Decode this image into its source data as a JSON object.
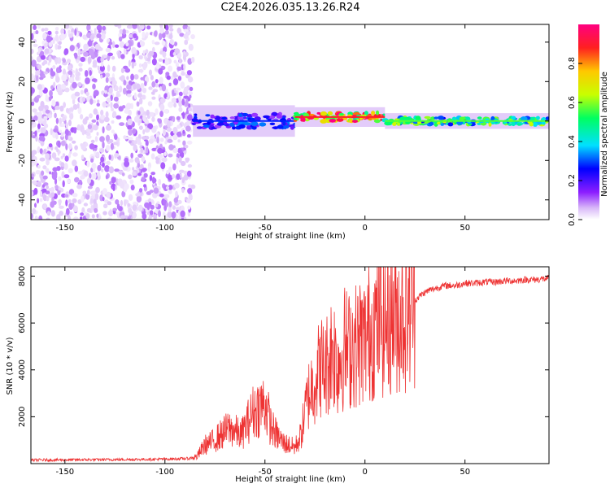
{
  "figure_title": "C2E4.2026.035.13.26.R24",
  "colors": {
    "snr_line": "#ee3333",
    "frame": "#000000",
    "background": "#ffffff"
  },
  "chart_data": [
    {
      "id": "spectrogram",
      "type": "heatmap",
      "title": "",
      "xlabel": "Height of straight line (km)",
      "ylabel": "Frequency (Hz)",
      "xlim": [
        -167,
        92
      ],
      "ylim": [
        -50,
        49
      ],
      "xticks": [
        -150,
        -100,
        -50,
        0,
        50
      ],
      "yticks": [
        -40,
        -20,
        0,
        20,
        40
      ],
      "colorbar": {
        "label": "Normalized spectral amplitude",
        "range": [
          0,
          1
        ],
        "ticks": [
          "0.0",
          "0.2",
          "0.4",
          "0.6",
          "0.8"
        ],
        "tick_values": [
          0.0,
          0.2,
          0.4,
          0.6,
          0.8
        ],
        "colormap": [
          "#ffffff",
          "#d8b8f8",
          "#8c1eff",
          "#0000ff",
          "#00e0ff",
          "#00ff60",
          "#c8ff00",
          "#ffc800",
          "#ff2020",
          "#ff0080"
        ]
      },
      "regions": [
        {
          "name": "noise",
          "x_range": [
            -167,
            -86
          ],
          "freq_range": [
            -50,
            49
          ],
          "amplitude": 0.1
        },
        {
          "name": "carrier-onset",
          "x_range": [
            -86,
            -35
          ],
          "center_freq": 0,
          "bandwidth": 8,
          "amplitude": 0.35
        },
        {
          "name": "carrier-peak",
          "x_range": [
            -35,
            10
          ],
          "center_freq": 2,
          "bandwidth": 5,
          "amplitude": 0.9
        },
        {
          "name": "carrier-tail",
          "x_range": [
            10,
            92
          ],
          "center_freq": 0,
          "bandwidth": 4,
          "amplitude": 0.6
        }
      ]
    },
    {
      "id": "snr",
      "type": "line",
      "title": "",
      "xlabel": "Height of straight line (km)",
      "ylabel": "SNR (10 * v/v)",
      "xlim": [
        -167,
        92
      ],
      "ylim": [
        0,
        8400
      ],
      "xticks": [
        -150,
        -100,
        -50,
        0,
        50
      ],
      "yticks": [
        2000,
        4000,
        6000,
        8000
      ],
      "series": [
        {
          "name": "SNR",
          "x": [
            -167,
            -150,
            -130,
            -110,
            -95,
            -88,
            -84,
            -80,
            -77,
            -74,
            -71,
            -68,
            -65,
            -62,
            -59,
            -56,
            -53,
            -50,
            -47,
            -44,
            -41,
            -38,
            -35,
            -32,
            -30,
            -28,
            -26,
            -24,
            -22,
            -20,
            -18,
            -16,
            -14,
            -12,
            -10,
            -8,
            -6,
            -4,
            -2,
            0,
            2,
            4,
            6,
            8,
            10,
            13,
            16,
            20,
            24,
            28,
            32,
            36,
            40,
            45,
            50,
            55,
            60,
            65,
            70,
            75,
            80,
            85,
            92
          ],
          "y": [
            150,
            160,
            170,
            180,
            200,
            220,
            300,
            800,
            900,
            1100,
            1300,
            1500,
            1400,
            1200,
            1700,
            2200,
            2400,
            2600,
            1600,
            1200,
            900,
            800,
            700,
            1200,
            2200,
            3000,
            3400,
            3800,
            4200,
            4000,
            4500,
            5000,
            4200,
            4600,
            5000,
            4800,
            5200,
            5000,
            5300,
            5200,
            5600,
            5800,
            6000,
            6200,
            6000,
            6300,
            6300,
            6500,
            6900,
            7200,
            7400,
            7500,
            7600,
            7600,
            7700,
            7700,
            7750,
            7750,
            7800,
            7800,
            7850,
            7850,
            7900
          ]
        }
      ]
    }
  ]
}
